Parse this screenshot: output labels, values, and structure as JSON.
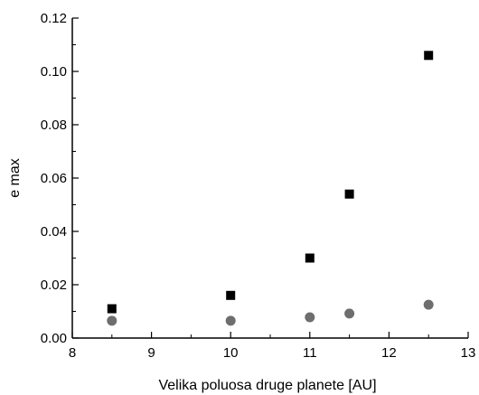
{
  "chart_data": {
    "type": "scatter",
    "title": "",
    "xlabel": "Velika poluosa druge planete [AU]",
    "ylabel": "e max",
    "xlim": [
      8,
      13
    ],
    "ylim": [
      0,
      0.12
    ],
    "xticks": [
      8,
      9,
      10,
      11,
      12,
      13
    ],
    "yticks": [
      0.0,
      0.02,
      0.04,
      0.06,
      0.08,
      0.1,
      0.12
    ],
    "xtick_labels": [
      "8",
      "9",
      "10",
      "11",
      "12",
      "13"
    ],
    "ytick_labels": [
      "0.00",
      "0.02",
      "0.04",
      "0.06",
      "0.08",
      "0.10",
      "0.12"
    ],
    "grid": false,
    "legend": "none",
    "series": [
      {
        "marker": "square",
        "color": "#000000",
        "x": [
          8.5,
          10,
          11,
          11.5,
          12.5
        ],
        "y": [
          0.011,
          0.016,
          0.03,
          0.054,
          0.106
        ]
      },
      {
        "marker": "circle",
        "color": "#6e6e6e",
        "x": [
          8.5,
          10,
          11,
          11.5,
          12.5
        ],
        "y": [
          0.0065,
          0.0065,
          0.0078,
          0.0092,
          0.0125
        ]
      }
    ]
  }
}
